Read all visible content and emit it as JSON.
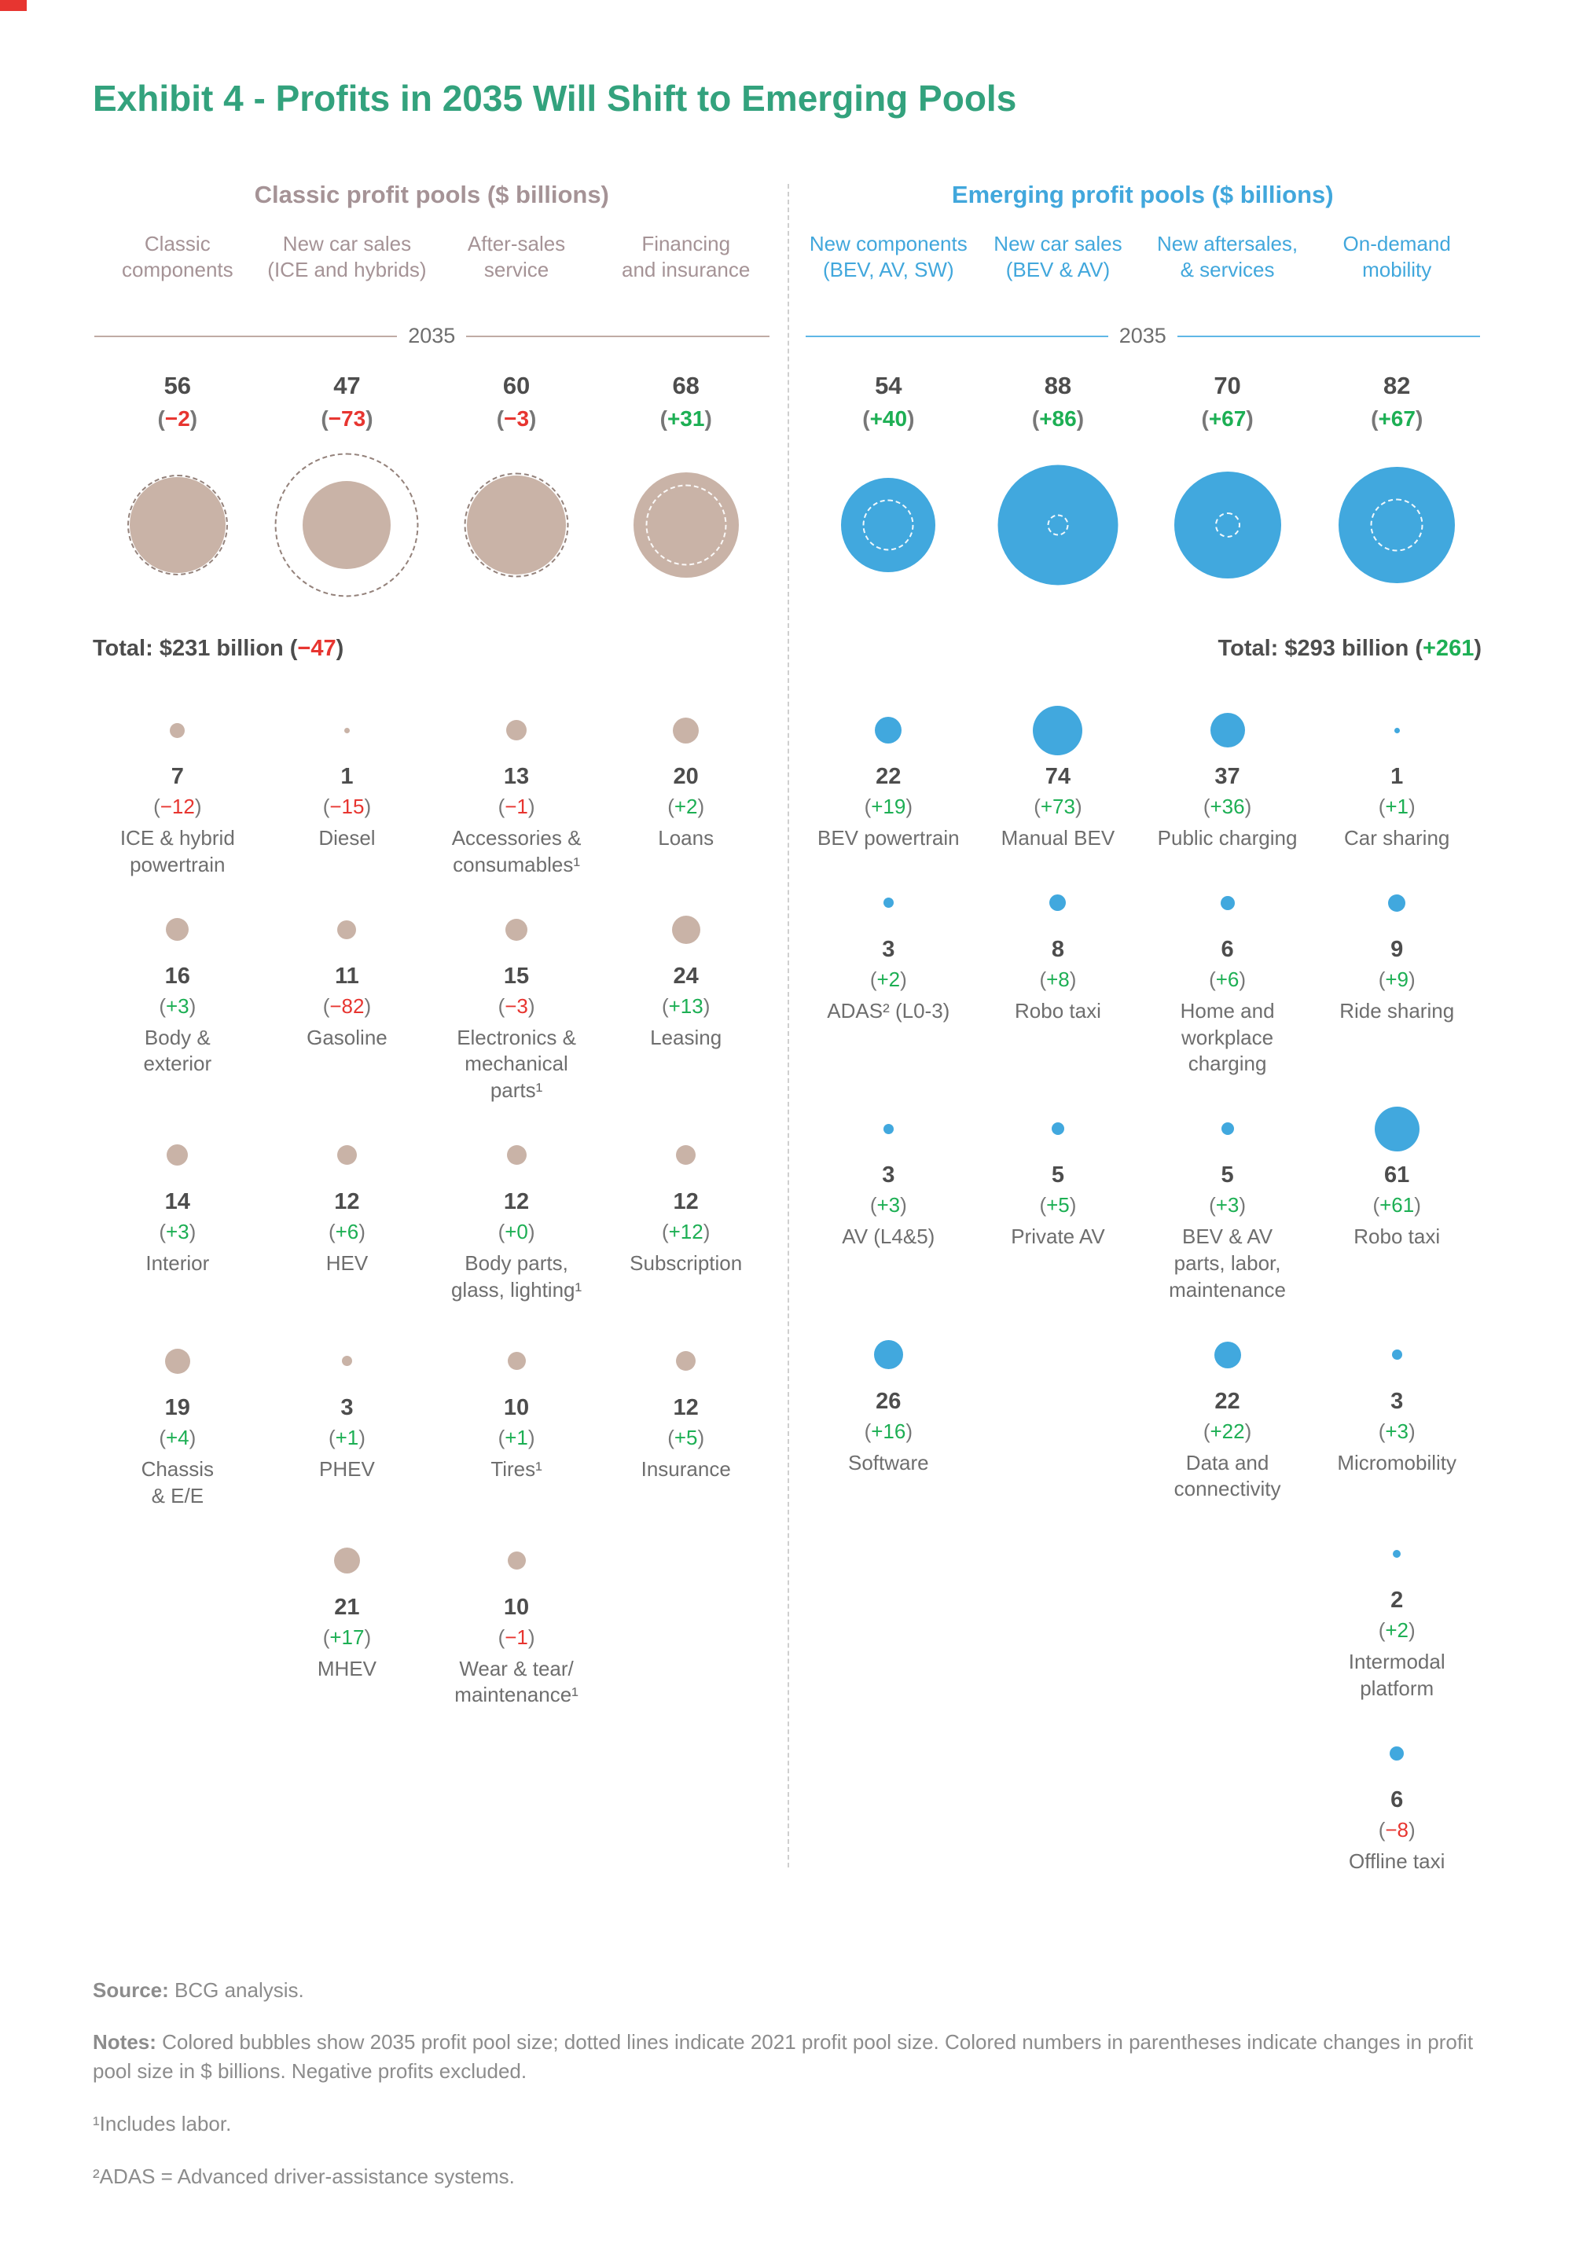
{
  "page": {
    "title": "Exhibit 4 - Profits in 2035 Will Shift to Emerging Pools"
  },
  "chart_data": {
    "type": "bubble",
    "unit": "$ billions",
    "year": "2035",
    "prev_year": "2021",
    "colors": {
      "classic": "#C9B3A7",
      "emerging": "#41A8DE",
      "positive": "#1DAF54",
      "negative": "#E73530"
    },
    "panels": [
      {
        "id": "classic",
        "title": "Classic profit pools ($ billions)",
        "year_label": "2035",
        "total_text": "Total: $231 billion",
        "total_value": 231,
        "total_change": -47,
        "columns": [
          {
            "header": "Classic\ncomponents",
            "value": 56,
            "change": -2
          },
          {
            "header": "New car sales\n(ICE and hybrids)",
            "value": 47,
            "change": -73
          },
          {
            "header": "After-sales\nservice",
            "value": 60,
            "change": -3
          },
          {
            "header": "Financing\nand insurance",
            "value": 68,
            "change": 31
          }
        ],
        "rows": [
          [
            {
              "value": 7,
              "change": -12,
              "label": "ICE & hybrid\npowertrain"
            },
            {
              "value": 1,
              "change": -15,
              "label": "Diesel"
            },
            {
              "value": 13,
              "change": -1,
              "label": "Accessories &\nconsumables¹"
            },
            {
              "value": 20,
              "change": 2,
              "label": "Loans"
            }
          ],
          [
            {
              "value": 16,
              "change": 3,
              "label": "Body &\nexterior"
            },
            {
              "value": 11,
              "change": -82,
              "label": "Gasoline"
            },
            {
              "value": 15,
              "change": -3,
              "label": "Electronics &\nmechanical parts¹"
            },
            {
              "value": 24,
              "change": 13,
              "label": "Leasing"
            }
          ],
          [
            {
              "value": 14,
              "change": 3,
              "label": "Interior"
            },
            {
              "value": 12,
              "change": 6,
              "label": "HEV"
            },
            {
              "value": 12,
              "change": 0,
              "label": "Body parts,\nglass, lighting¹"
            },
            {
              "value": 12,
              "change": 12,
              "label": "Subscription"
            }
          ],
          [
            {
              "value": 19,
              "change": 4,
              "label": "Chassis\n& E/E"
            },
            {
              "value": 3,
              "change": 1,
              "label": "PHEV"
            },
            {
              "value": 10,
              "change": 1,
              "label": "Tires¹"
            },
            {
              "value": 12,
              "change": 5,
              "label": "Insurance"
            }
          ],
          [
            null,
            {
              "value": 21,
              "change": 17,
              "label": "MHEV"
            },
            {
              "value": 10,
              "change": -1,
              "label": "Wear & tear/\nmaintenance¹"
            },
            null
          ],
          [
            null,
            null,
            null,
            null
          ]
        ]
      },
      {
        "id": "emerging",
        "title": "Emerging profit pools ($ billions)",
        "year_label": "2035",
        "total_text": "Total: $293 billion",
        "total_value": 293,
        "total_change": 261,
        "columns": [
          {
            "header": "New components\n(BEV, AV, SW)",
            "value": 54,
            "change": 40
          },
          {
            "header": "New car sales\n(BEV & AV)",
            "value": 88,
            "change": 86
          },
          {
            "header": "New aftersales,\n& services",
            "value": 70,
            "change": 67
          },
          {
            "header": "On-demand\nmobility",
            "value": 82,
            "change": 67
          }
        ],
        "rows": [
          [
            {
              "value": 22,
              "change": 19,
              "label": "BEV powertrain"
            },
            {
              "value": 74,
              "change": 73,
              "label": "Manual BEV"
            },
            {
              "value": 37,
              "change": 36,
              "label": "Public charging"
            },
            {
              "value": 1,
              "change": 1,
              "label": "Car sharing"
            }
          ],
          [
            {
              "value": 3,
              "change": 2,
              "label": "ADAS² (L0-3)"
            },
            {
              "value": 8,
              "change": 8,
              "label": "Robo taxi"
            },
            {
              "value": 6,
              "change": 6,
              "label": "Home and\nworkplace charging"
            },
            {
              "value": 9,
              "change": 9,
              "label": "Ride sharing"
            }
          ],
          [
            {
              "value": 3,
              "change": 3,
              "label": "AV (L4&5)"
            },
            {
              "value": 5,
              "change": 5,
              "label": "Private AV"
            },
            {
              "value": 5,
              "change": 3,
              "label": "BEV & AV\nparts, labor,\nmaintenance"
            },
            {
              "value": 61,
              "change": 61,
              "label": "Robo taxi"
            }
          ],
          [
            {
              "value": 26,
              "change": 16,
              "label": "Software"
            },
            null,
            {
              "value": 22,
              "change": 22,
              "label": "Data and\nconnectivity"
            },
            {
              "value": 3,
              "change": 3,
              "label": "Micromobility"
            }
          ],
          [
            null,
            null,
            null,
            {
              "value": 2,
              "change": 2,
              "label": "Intermodal\nplatform"
            }
          ],
          [
            null,
            null,
            null,
            {
              "value": 6,
              "change": -8,
              "label": "Offline taxi"
            }
          ]
        ]
      }
    ]
  },
  "footer": {
    "source_bold": "Source:",
    "source_rest": " BCG analysis.",
    "notes_bold": "Notes:",
    "notes_rest": " Colored bubbles show 2035 profit pool size; dotted lines indicate 2021 profit pool size. Colored numbers in parentheses indicate changes in profit pool size in $ billions. Negative profits excluded.",
    "footnote1": "¹Includes labor.",
    "footnote2": "²ADAS = Advanced driver-assistance systems."
  }
}
